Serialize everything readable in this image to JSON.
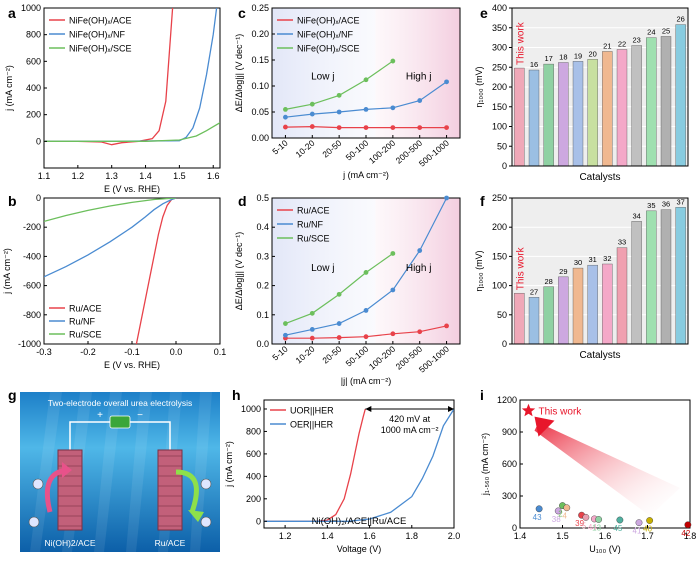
{
  "panel_labels": {
    "a": "a",
    "b": "b",
    "c": "c",
    "d": "d",
    "e": "e",
    "f": "f",
    "g": "g",
    "h": "h",
    "i": "i"
  },
  "colors": {
    "red": "#e8424a",
    "blue": "#4a8bd1",
    "green": "#6cbf5c",
    "pink_band": "#f7dde8",
    "blue_band": "#e3e8f7",
    "star": "#e8162b"
  },
  "panel_g": {
    "title": "Two-electrode overall urea electrolysis",
    "left_electrode": "Ni(OH)2/ACE",
    "right_electrode": "Ru/ACE"
  },
  "chart_data": [
    {
      "id": "a",
      "type": "line",
      "xlabel": "E (V vs. RHE)",
      "ylabel": "j (mA cm⁻²)",
      "xlim": [
        1.1,
        1.62
      ],
      "ylim": [
        -200,
        1000
      ],
      "xticks": [
        "1.1",
        "1.2",
        "1.3",
        "1.4",
        "1.5",
        "1.6"
      ],
      "yticks": [
        "0",
        "200",
        "400",
        "600",
        "800",
        "1000"
      ],
      "series": [
        {
          "name": "NiFe(OH)x/ACE",
          "color": "red",
          "x": [
            1.1,
            1.2,
            1.27,
            1.3,
            1.33,
            1.38,
            1.42,
            1.44,
            1.46,
            1.47,
            1.48
          ],
          "y": [
            0,
            0,
            -5,
            -25,
            -10,
            0,
            20,
            80,
            300,
            650,
            1000
          ]
        },
        {
          "name": "NiFe(OH)x/NF",
          "color": "blue",
          "x": [
            1.1,
            1.3,
            1.5,
            1.52,
            1.54,
            1.56,
            1.58,
            1.6,
            1.61
          ],
          "y": [
            0,
            0,
            5,
            30,
            100,
            250,
            500,
            800,
            1000
          ]
        },
        {
          "name": "NiFe(OH)x/SCE",
          "color": "green",
          "x": [
            1.1,
            1.4,
            1.5,
            1.55,
            1.58,
            1.6,
            1.62
          ],
          "y": [
            0,
            0,
            10,
            40,
            80,
            110,
            140
          ]
        }
      ]
    },
    {
      "id": "b",
      "type": "line",
      "xlabel": "E (V vs. RHE)",
      "ylabel": "j (mA cm⁻²)",
      "xlim": [
        -0.3,
        0.1
      ],
      "ylim": [
        -1000,
        0
      ],
      "xticks": [
        "-0.3",
        "-0.2",
        "-0.1",
        "0.0",
        "0.1"
      ],
      "yticks": [
        "-1000",
        "-800",
        "-600",
        "-400",
        "-200",
        "0"
      ],
      "series": [
        {
          "name": "Ru/ACE",
          "color": "red",
          "x": [
            -0.09,
            -0.08,
            -0.07,
            -0.06,
            -0.05,
            -0.04,
            -0.03,
            -0.02,
            -0.01,
            0.0
          ],
          "y": [
            -1000,
            -850,
            -700,
            -550,
            -400,
            -250,
            -130,
            -50,
            -10,
            0
          ]
        },
        {
          "name": "Ru/NF",
          "color": "blue",
          "x": [
            -0.3,
            -0.25,
            -0.2,
            -0.15,
            -0.1,
            -0.07,
            -0.05,
            -0.03,
            -0.01,
            0.0
          ],
          "y": [
            -540,
            -470,
            -390,
            -300,
            -200,
            -130,
            -80,
            -40,
            -10,
            0
          ]
        },
        {
          "name": "Ru/SCE",
          "color": "green",
          "x": [
            -0.3,
            -0.25,
            -0.2,
            -0.15,
            -0.1,
            -0.05,
            0.0
          ],
          "y": [
            -160,
            -120,
            -85,
            -55,
            -30,
            -10,
            0
          ]
        }
      ]
    },
    {
      "id": "c",
      "type": "line",
      "xlabel": "j (mA cm⁻²)",
      "ylabel": "ΔE/Δlog|j| (V dec⁻¹)",
      "ylim": [
        0,
        0.25
      ],
      "yticks": [
        "0.00",
        "0.05",
        "0.10",
        "0.15",
        "0.20",
        "0.25"
      ],
      "categories": [
        "5-10",
        "10-20",
        "20-50",
        "50-100",
        "100-200",
        "200-500",
        "500-1000"
      ],
      "annotations": [
        "Low j",
        "High j"
      ],
      "series": [
        {
          "name": "NiFe(OH)x/ACE",
          "color": "red",
          "values": [
            0.021,
            0.022,
            0.02,
            0.02,
            0.02,
            0.02,
            0.02
          ]
        },
        {
          "name": "NiFe(OH)x/NF",
          "color": "blue",
          "values": [
            0.04,
            0.046,
            0.05,
            0.055,
            0.058,
            0.072,
            0.108
          ]
        },
        {
          "name": "NiFe(OH)x/SCE",
          "color": "green",
          "values": [
            0.055,
            0.065,
            0.082,
            0.112,
            0.148,
            null,
            null
          ]
        }
      ]
    },
    {
      "id": "d",
      "type": "line",
      "xlabel": "|j| (mA cm⁻²)",
      "ylabel": "ΔE/Δlog|j| (V dec⁻¹)",
      "ylim": [
        0,
        0.5
      ],
      "yticks": [
        "0.0",
        "0.1",
        "0.2",
        "0.3",
        "0.4",
        "0.5"
      ],
      "categories": [
        "5-10",
        "10-20",
        "20-50",
        "50-100",
        "100-200",
        "200-500",
        "500-1000"
      ],
      "annotations": [
        "Low j",
        "High j"
      ],
      "series": [
        {
          "name": "Ru/ACE",
          "color": "red",
          "values": [
            0.02,
            0.02,
            0.022,
            0.025,
            0.035,
            0.042,
            0.062
          ]
        },
        {
          "name": "Ru/NF",
          "color": "blue",
          "values": [
            0.03,
            0.05,
            0.07,
            0.115,
            0.185,
            0.32,
            0.5
          ]
        },
        {
          "name": "Ru/SCE",
          "color": "green",
          "values": [
            0.07,
            0.105,
            0.17,
            0.245,
            0.31,
            null,
            null
          ]
        }
      ]
    },
    {
      "id": "e",
      "type": "bar",
      "xlabel": "Catalysts",
      "ylabel": "η₁₀₀₀ (mV)",
      "ylim": [
        0,
        400
      ],
      "yticks": [
        "0",
        "50",
        "100",
        "150",
        "200",
        "250",
        "300",
        "350",
        "400"
      ],
      "highlight_label": "This work",
      "labels": [
        "",
        "16",
        "17",
        "18",
        "19",
        "20",
        "21",
        "22",
        "23",
        "24",
        "25",
        "26"
      ],
      "values": [
        248,
        243,
        258,
        262,
        265,
        270,
        290,
        295,
        305,
        325,
        328,
        358
      ],
      "bar_colors": [
        "#f0a8b8",
        "#9bbfe3",
        "#8fd1a3",
        "#cda8e0",
        "#a8c0e8",
        "#c8e0a0",
        "#f0b890",
        "#f4a8c8",
        "#c0c0c0",
        "#9fe0b0",
        "#b0b0b0",
        "#88cce0"
      ]
    },
    {
      "id": "f",
      "type": "bar",
      "xlabel": "Catalysts",
      "ylabel": "η₁₀₀₀ (mV)",
      "ylim": [
        0,
        250
      ],
      "yticks": [
        "0",
        "50",
        "100",
        "150",
        "200",
        "250"
      ],
      "highlight_label": "This work",
      "labels": [
        "",
        "27",
        "28",
        "29",
        "30",
        "31",
        "32",
        "33",
        "34",
        "35",
        "36",
        "37"
      ],
      "values": [
        87,
        80,
        98,
        115,
        130,
        135,
        137,
        165,
        210,
        228,
        230,
        234
      ],
      "bar_colors": [
        "#f0a8b8",
        "#9bbfe3",
        "#8fd1a3",
        "#cda8e0",
        "#f0b890",
        "#a8c0e8",
        "#f4a8c8",
        "#f0a0b0",
        "#c0c0c0",
        "#9fe0b0",
        "#b0b0b0",
        "#88cce0"
      ]
    },
    {
      "id": "h",
      "type": "line",
      "xlabel": "Voltage (V)",
      "ylabel": "j (mA cm⁻²)",
      "xlim": [
        1.1,
        2.0
      ],
      "ylim": [
        -60,
        1080
      ],
      "xticks": [
        "1.2",
        "1.4",
        "1.6",
        "1.8",
        "2.0"
      ],
      "yticks": [
        "0",
        "200",
        "400",
        "600",
        "800",
        "1000"
      ],
      "annotation": [
        "420 mV at",
        "1000 mA cm⁻²"
      ],
      "device_label": "Ni(OH)₂/ACE||Ru/ACE",
      "series": [
        {
          "name": "UOR||HER",
          "color": "red",
          "x": [
            1.1,
            1.35,
            1.4,
            1.44,
            1.48,
            1.51,
            1.53,
            1.55,
            1.57,
            1.58
          ],
          "y": [
            0,
            0,
            10,
            60,
            200,
            420,
            600,
            780,
            930,
            1000
          ]
        },
        {
          "name": "OER||HER",
          "color": "blue",
          "x": [
            1.1,
            1.5,
            1.6,
            1.7,
            1.8,
            1.85,
            1.9,
            1.95,
            2.0
          ],
          "y": [
            0,
            0,
            20,
            80,
            220,
            380,
            580,
            850,
            1000
          ]
        }
      ]
    },
    {
      "id": "i",
      "type": "scatter",
      "xlabel": "U₁₀₀ (V)",
      "ylabel": "j₁.₅₆₀ (mA cm⁻²)",
      "xlim": [
        1.4,
        1.8
      ],
      "ylim": [
        0,
        1200
      ],
      "xticks": [
        "1.4",
        "1.5",
        "1.6",
        "1.7",
        "1.8"
      ],
      "yticks": [
        "0",
        "300",
        "600",
        "900",
        "1200"
      ],
      "highlight": {
        "label": "This work",
        "x": 1.42,
        "y": 1100
      },
      "points": [
        {
          "label": "43",
          "x": 1.445,
          "y": 180,
          "color": "#4a8bd1"
        },
        {
          "label": "38",
          "x": 1.49,
          "y": 160,
          "color": "#cda8e0"
        },
        {
          "label": "2",
          "x": 1.5,
          "y": 210,
          "color": "#6cbf5c"
        },
        {
          "label": "4",
          "x": 1.51,
          "y": 190,
          "color": "#f0b890"
        },
        {
          "label": "39",
          "x": 1.545,
          "y": 120,
          "color": "#e8424a"
        },
        {
          "label": "5",
          "x": 1.555,
          "y": 100,
          "color": "#e8a0b0"
        },
        {
          "label": "44",
          "x": 1.575,
          "y": 85,
          "color": "#f4a8c8"
        },
        {
          "label": "13",
          "x": 1.585,
          "y": 80,
          "color": "#8fd1a3"
        },
        {
          "label": "45",
          "x": 1.635,
          "y": 75,
          "color": "#4fb0a0"
        },
        {
          "label": "41",
          "x": 1.68,
          "y": 50,
          "color": "#cda8e0"
        },
        {
          "label": "40",
          "x": 1.705,
          "y": 70,
          "color": "#c8b000"
        },
        {
          "label": "42",
          "x": 1.795,
          "y": 30,
          "color": "#c00000"
        }
      ]
    }
  ]
}
